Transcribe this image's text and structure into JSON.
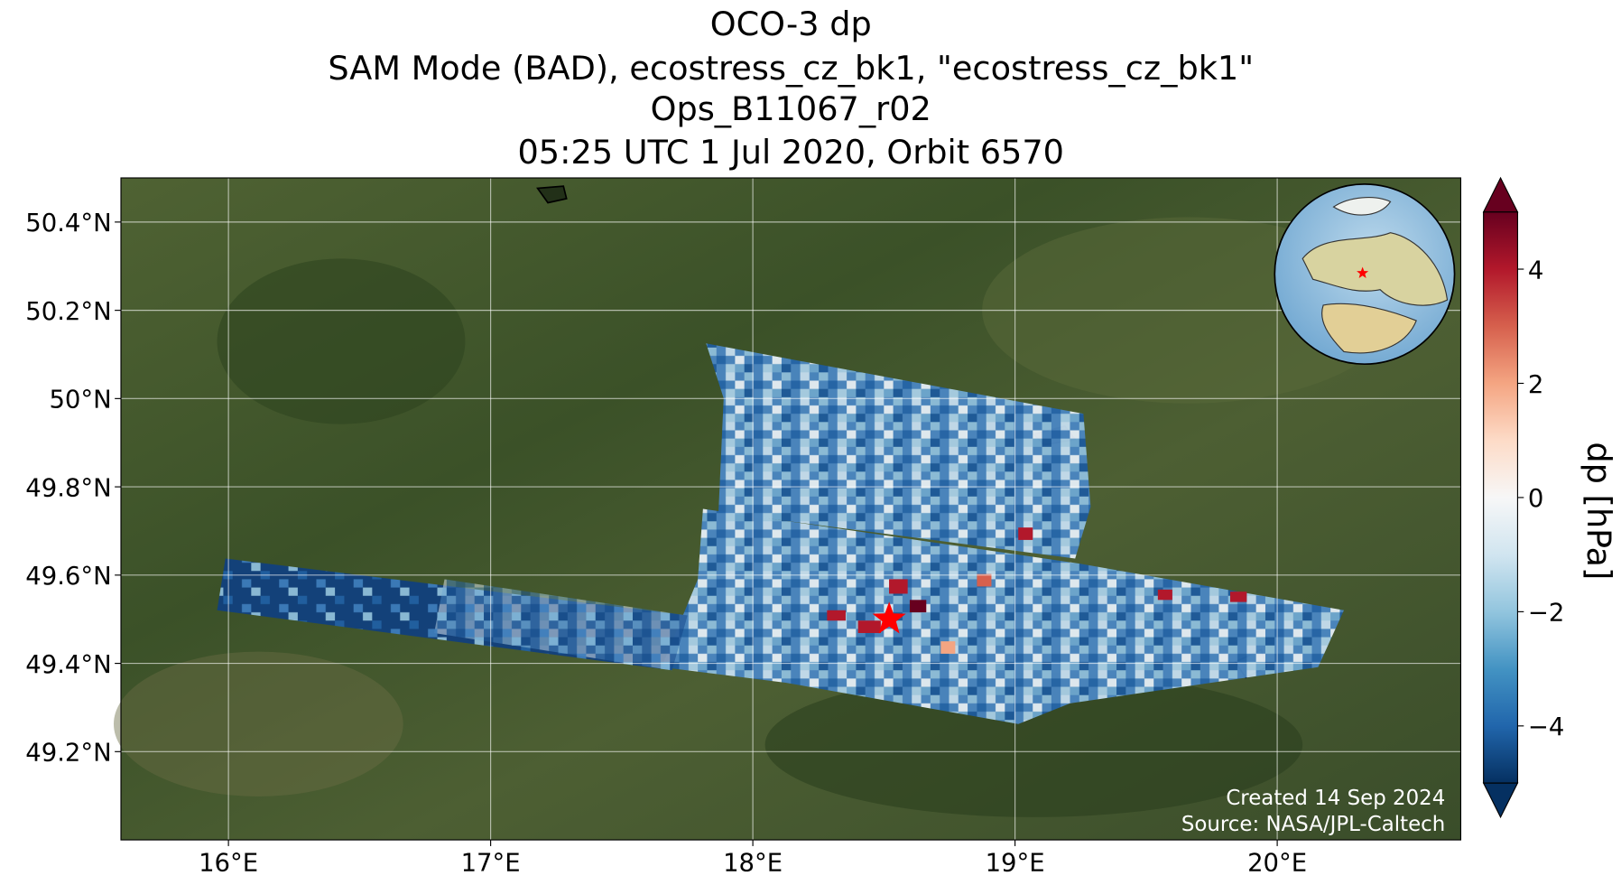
{
  "chart_data": {
    "type": "map",
    "title": [
      "OCO-3 dp",
      "SAM Mode (BAD), ecostress_cz_bk1, \"ecostress_cz_bk1\"",
      "Ops_B11067_r02",
      "05:25 UTC 1 Jul 2020, Orbit 6570"
    ],
    "xlim": [
      15.59,
      20.7
    ],
    "ylim": [
      49.0,
      50.5
    ],
    "xticks": [
      {
        "value": 16,
        "label": "16°E"
      },
      {
        "value": 17,
        "label": "17°E"
      },
      {
        "value": 18,
        "label": "18°E"
      },
      {
        "value": 19,
        "label": "19°E"
      },
      {
        "value": 20,
        "label": "20°E"
      }
    ],
    "yticks": [
      {
        "value": 49.2,
        "label": "49.2°N"
      },
      {
        "value": 49.4,
        "label": "49.4°N"
      },
      {
        "value": 49.6,
        "label": "49.6°N"
      },
      {
        "value": 49.8,
        "label": "49.8°N"
      },
      {
        "value": 50,
        "label": "50°N"
      },
      {
        "value": 50.2,
        "label": "50.2°N"
      },
      {
        "value": 50.4,
        "label": "50.4°N"
      }
    ],
    "grid": true,
    "target": {
      "lon": 18.52,
      "lat": 49.5,
      "color": "#ff0000"
    },
    "colorbar": {
      "label": "dp [hPa]",
      "clim": [
        -5,
        5
      ],
      "ticks": [
        {
          "value": -4,
          "label": "−4"
        },
        {
          "value": -2,
          "label": "−2"
        },
        0,
        2,
        4
      ],
      "colormap": [
        "#053061",
        "#2166ac",
        "#4393c3",
        "#92c5de",
        "#d1e5f0",
        "#f7f7f7",
        "#fddbc7",
        "#f4a582",
        "#d6604d",
        "#b2182b",
        "#67001f"
      ]
    },
    "annotations": [
      "Created 14 Sep 2024",
      "Source: NASA/JPL-Caltech"
    ]
  }
}
